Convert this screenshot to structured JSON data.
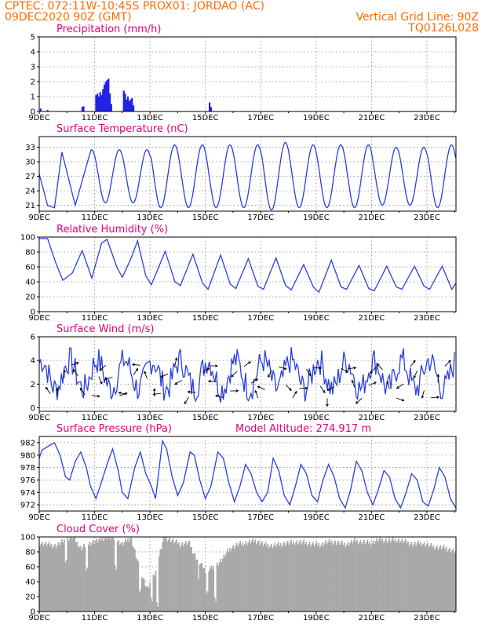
{
  "header": {
    "line1_left": "CPTEC:   072:11W-10:45S   PROX01: JORDAO (AC)",
    "line2_left": "09DEC2020 90Z (GMT)",
    "line2_right": "Vertical Grid Line: 90Z",
    "line3_right": "TQ0126L028"
  },
  "colors": {
    "header": "#ff6a00",
    "panel_title": "#e0007a",
    "series": "#2a3fe0",
    "cloud": "#a9a9a9",
    "precip_bar": "#2323e6"
  },
  "x_axis": {
    "tick_labels": [
      "9DEC",
      "11DEC",
      "13DEC",
      "15DEC",
      "17DEC",
      "19DEC",
      "21DEC",
      "23DEC"
    ],
    "tick_days": [
      9,
      11,
      13,
      15,
      17,
      19,
      21,
      23
    ],
    "range_days": [
      9,
      24.05
    ]
  },
  "chart_data": [
    {
      "type": "bar",
      "title": "Precipitation (mm/h)",
      "ylim": [
        0,
        5
      ],
      "yticks": [
        0,
        1,
        2,
        3,
        4,
        5
      ],
      "x_days": [
        9.05,
        9.3,
        10.55,
        10.6,
        11.05,
        11.1,
        11.15,
        11.2,
        11.25,
        11.3,
        11.35,
        11.4,
        11.45,
        11.5,
        11.55,
        11.6,
        12.05,
        12.1,
        12.15,
        12.2,
        12.25,
        12.3,
        12.35,
        12.4,
        15.15,
        15.2
      ],
      "values": [
        0.2,
        0.1,
        0.3,
        0.35,
        1.1,
        1.2,
        1.0,
        1.3,
        1.1,
        1.5,
        1.8,
        2.0,
        2.1,
        2.2,
        1.2,
        0.5,
        1.4,
        1.2,
        0.8,
        1.0,
        0.7,
        0.8,
        0.9,
        0.4,
        0.6,
        0.3
      ]
    },
    {
      "type": "line",
      "title": "Surface Temperature (nC)",
      "ylim": [
        19.8,
        35.2
      ],
      "yticks": [
        21,
        24,
        27,
        30,
        33
      ],
      "mean": 27,
      "amplitude": [
        5,
        5.5,
        5.5,
        5.5,
        6.5,
        6.5,
        6.5,
        6.5,
        7,
        6.5,
        6.5,
        6.5,
        6,
        6,
        6.5
      ],
      "peak_phase": 0.32,
      "annotations": [
        {
          "day": 9.0,
          "value": 27.5
        },
        {
          "day": 9.3,
          "value": 21.0
        },
        {
          "day": 9.55,
          "value": 20.5
        },
        {
          "day": 9.82,
          "value": 32.0
        },
        {
          "day": 10.3,
          "value": 21.0
        },
        {
          "day": 10.82,
          "value": 31.5
        }
      ]
    },
    {
      "type": "line",
      "title": "Relative Humidity (%)",
      "ylim": [
        0,
        100
      ],
      "yticks": [
        0,
        20,
        40,
        60,
        80,
        100
      ],
      "points": [
        [
          9.0,
          98
        ],
        [
          9.3,
          98
        ],
        [
          9.6,
          65
        ],
        [
          9.85,
          42
        ],
        [
          10.2,
          52
        ],
        [
          10.55,
          82
        ],
        [
          10.9,
          45
        ],
        [
          11.25,
          92
        ],
        [
          11.45,
          97
        ],
        [
          11.8,
          60
        ],
        [
          12.0,
          46
        ],
        [
          12.3,
          70
        ],
        [
          12.55,
          95
        ],
        [
          12.85,
          48
        ],
        [
          13.05,
          36
        ],
        [
          13.55,
          81
        ],
        [
          13.9,
          40
        ],
        [
          14.1,
          35
        ],
        [
          14.55,
          77
        ],
        [
          14.9,
          38
        ],
        [
          15.1,
          30
        ],
        [
          15.55,
          76
        ],
        [
          15.9,
          37
        ],
        [
          16.1,
          31
        ],
        [
          16.55,
          71
        ],
        [
          16.9,
          34
        ],
        [
          17.1,
          30
        ],
        [
          17.55,
          72
        ],
        [
          17.9,
          35
        ],
        [
          18.1,
          29
        ],
        [
          18.55,
          63
        ],
        [
          18.9,
          33
        ],
        [
          19.1,
          26
        ],
        [
          19.55,
          69
        ],
        [
          19.9,
          33
        ],
        [
          20.1,
          30
        ],
        [
          20.55,
          62
        ],
        [
          20.9,
          31
        ],
        [
          21.1,
          28
        ],
        [
          21.55,
          61
        ],
        [
          21.9,
          33
        ],
        [
          22.1,
          30
        ],
        [
          22.55,
          61
        ],
        [
          22.9,
          34
        ],
        [
          23.1,
          30
        ],
        [
          23.55,
          61
        ],
        [
          23.9,
          30
        ],
        [
          24.05,
          38
        ]
      ]
    },
    {
      "type": "line",
      "title": "Surface Wind (m/s)",
      "ylim": [
        -0.3,
        6
      ],
      "yticks": [
        0,
        2,
        4,
        6
      ],
      "base": 2.8,
      "noise_amp": 1.2,
      "seed": 7,
      "vector_interval_days": 0.25
    },
    {
      "type": "line",
      "title": "Surface Pressure (hPa)",
      "subtitle": "Model Altitude: 274.917 m",
      "ylim": [
        971,
        983
      ],
      "yticks": [
        972,
        974,
        976,
        978,
        980,
        982
      ],
      "points": [
        [
          9.0,
          979.5
        ],
        [
          9.1,
          980.8
        ],
        [
          9.35,
          981.5
        ],
        [
          9.55,
          982.0
        ],
        [
          9.75,
          980.0
        ],
        [
          9.95,
          976.5
        ],
        [
          10.1,
          976.0
        ],
        [
          10.3,
          979.0
        ],
        [
          10.5,
          980.5
        ],
        [
          10.7,
          978.0
        ],
        [
          10.85,
          975.0
        ],
        [
          11.05,
          973.0
        ],
        [
          11.2,
          975.0
        ],
        [
          11.45,
          978.5
        ],
        [
          11.65,
          981.0
        ],
        [
          11.85,
          977.5
        ],
        [
          12.0,
          974.0
        ],
        [
          12.2,
          973.0
        ],
        [
          12.45,
          978.0
        ],
        [
          12.65,
          980.5
        ],
        [
          12.85,
          977.0
        ],
        [
          13.05,
          975.0
        ],
        [
          13.2,
          973.0
        ],
        [
          13.45,
          982.3
        ],
        [
          13.6,
          981.0
        ],
        [
          13.8,
          976.5
        ],
        [
          14.0,
          973.5
        ],
        [
          14.2,
          975.5
        ],
        [
          14.45,
          980.5
        ],
        [
          14.6,
          980.0
        ],
        [
          14.8,
          976.0
        ],
        [
          15.0,
          973.0
        ],
        [
          15.2,
          975.0
        ],
        [
          15.45,
          980.5
        ],
        [
          15.65,
          979.5
        ],
        [
          15.85,
          975.5
        ],
        [
          16.05,
          972.5
        ],
        [
          16.25,
          975.0
        ],
        [
          16.45,
          978.5
        ],
        [
          16.65,
          977.0
        ],
        [
          16.85,
          974.0
        ],
        [
          17.05,
          972.5
        ],
        [
          17.25,
          974.0
        ],
        [
          17.45,
          979.5
        ],
        [
          17.65,
          977.5
        ],
        [
          17.85,
          973.5
        ],
        [
          18.05,
          972.0
        ],
        [
          18.25,
          975.0
        ],
        [
          18.45,
          978.5
        ],
        [
          18.65,
          977.0
        ],
        [
          18.85,
          973.5
        ],
        [
          19.05,
          972.5
        ],
        [
          19.25,
          976.0
        ],
        [
          19.45,
          978.5
        ],
        [
          19.65,
          976.5
        ],
        [
          19.85,
          973.0
        ],
        [
          20.05,
          971.5
        ],
        [
          20.25,
          974.5
        ],
        [
          20.45,
          979.0
        ],
        [
          20.65,
          977.5
        ],
        [
          20.85,
          974.0
        ],
        [
          21.05,
          972.0
        ],
        [
          21.25,
          974.5
        ],
        [
          21.45,
          977.5
        ],
        [
          21.65,
          976.5
        ],
        [
          21.85,
          973.0
        ],
        [
          22.05,
          971.5
        ],
        [
          22.25,
          974.0
        ],
        [
          22.45,
          977.0
        ],
        [
          22.65,
          976.0
        ],
        [
          22.85,
          972.5
        ],
        [
          23.05,
          971.8
        ],
        [
          23.25,
          974.5
        ],
        [
          23.45,
          978.0
        ],
        [
          23.65,
          976.5
        ],
        [
          23.85,
          973.0
        ],
        [
          24.05,
          971.5
        ]
      ]
    },
    {
      "type": "area",
      "title": "Cloud Cover (%)",
      "ylim": [
        0,
        100
      ],
      "yticks": [
        0,
        20,
        40,
        60,
        80,
        100
      ],
      "points": [
        [
          9.0,
          92
        ],
        [
          9.3,
          90
        ],
        [
          9.6,
          88
        ],
        [
          9.9,
          95
        ],
        [
          10.2,
          100
        ],
        [
          10.5,
          85
        ],
        [
          10.8,
          92
        ],
        [
          11.1,
          95
        ],
        [
          11.4,
          100
        ],
        [
          11.7,
          98
        ],
        [
          12.0,
          90
        ],
        [
          12.3,
          100
        ],
        [
          12.6,
          60
        ],
        [
          12.9,
          30
        ],
        [
          13.2,
          55
        ],
        [
          13.5,
          100
        ],
        [
          13.8,
          95
        ],
        [
          14.1,
          90
        ],
        [
          14.4,
          92
        ],
        [
          14.7,
          70
        ],
        [
          15.0,
          55
        ],
        [
          15.3,
          60
        ],
        [
          15.6,
          70
        ],
        [
          15.9,
          85
        ],
        [
          16.2,
          90
        ],
        [
          16.5,
          92
        ],
        [
          16.8,
          95
        ],
        [
          17.1,
          90
        ],
        [
          17.4,
          88
        ],
        [
          17.7,
          90
        ],
        [
          18.0,
          92
        ],
        [
          18.3,
          93
        ],
        [
          18.6,
          92
        ],
        [
          18.9,
          90
        ],
        [
          19.2,
          90
        ],
        [
          19.5,
          94
        ],
        [
          19.8,
          92
        ],
        [
          20.1,
          90
        ],
        [
          20.4,
          95
        ],
        [
          20.7,
          93
        ],
        [
          21.0,
          92
        ],
        [
          21.3,
          97
        ],
        [
          21.6,
          95
        ],
        [
          21.9,
          96
        ],
        [
          22.2,
          94
        ],
        [
          22.5,
          90
        ],
        [
          22.8,
          92
        ],
        [
          23.1,
          88
        ],
        [
          23.4,
          86
        ],
        [
          23.7,
          85
        ],
        [
          24.05,
          80
        ]
      ],
      "dips": [
        [
          9.95,
          70
        ],
        [
          10.7,
          55
        ],
        [
          11.75,
          60
        ],
        [
          12.65,
          28
        ],
        [
          13.05,
          15
        ],
        [
          13.25,
          10
        ],
        [
          14.75,
          40
        ],
        [
          15.05,
          25
        ],
        [
          15.35,
          15
        ]
      ]
    }
  ]
}
